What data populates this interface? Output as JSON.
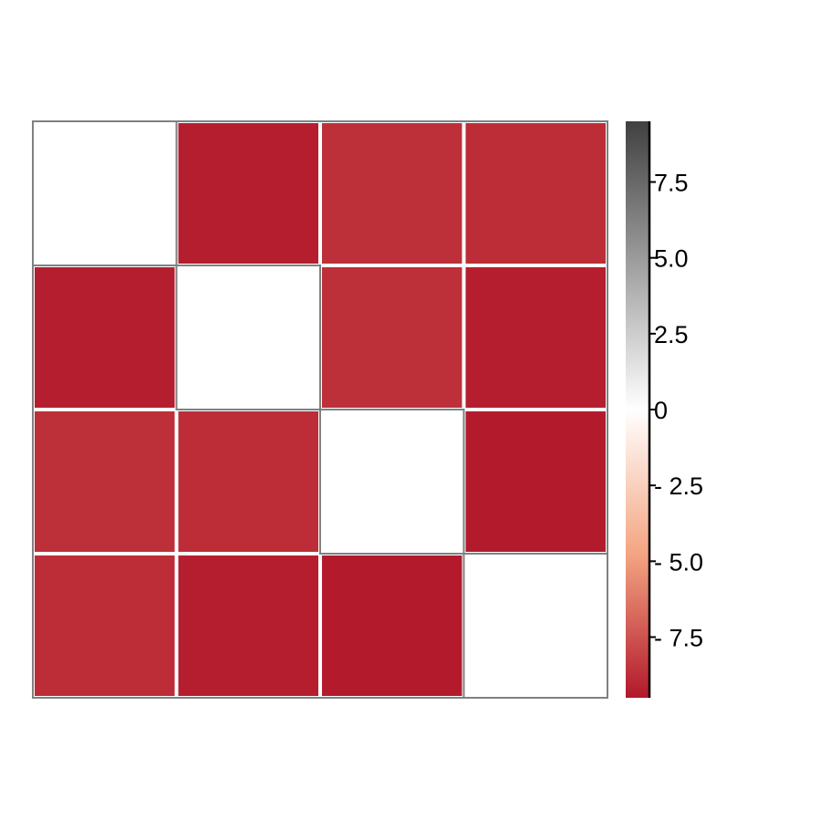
{
  "chart_data": {
    "type": "heatmap",
    "rows": 4,
    "cols": 4,
    "values": [
      [
        0,
        -9.3,
        -8.7,
        -8.8
      ],
      [
        -9.3,
        0,
        -8.7,
        -9.3
      ],
      [
        -8.7,
        -8.8,
        0,
        -9.4
      ],
      [
        -8.8,
        -9.3,
        -9.4,
        0
      ]
    ],
    "colorbar": {
      "min": -9.5,
      "max": 9.5,
      "ticks": [
        7.5,
        5.0,
        2.5,
        0,
        -2.5,
        -5.0,
        -7.5
      ],
      "tick_labels": [
        "7.5",
        "5.0",
        "2.5",
        "0",
        "- 2.5",
        "- 5.0",
        "- 7.5"
      ],
      "colors": {
        "positive_end": "#404040",
        "zero": "#ffffff",
        "negative_mid": "#f4a582",
        "negative_end": "#b2182b"
      }
    },
    "title": "",
    "xlabel": "",
    "ylabel": "",
    "cell_border_color_outer": "#808080",
    "cell_border_color_inner": "#ffffff"
  }
}
